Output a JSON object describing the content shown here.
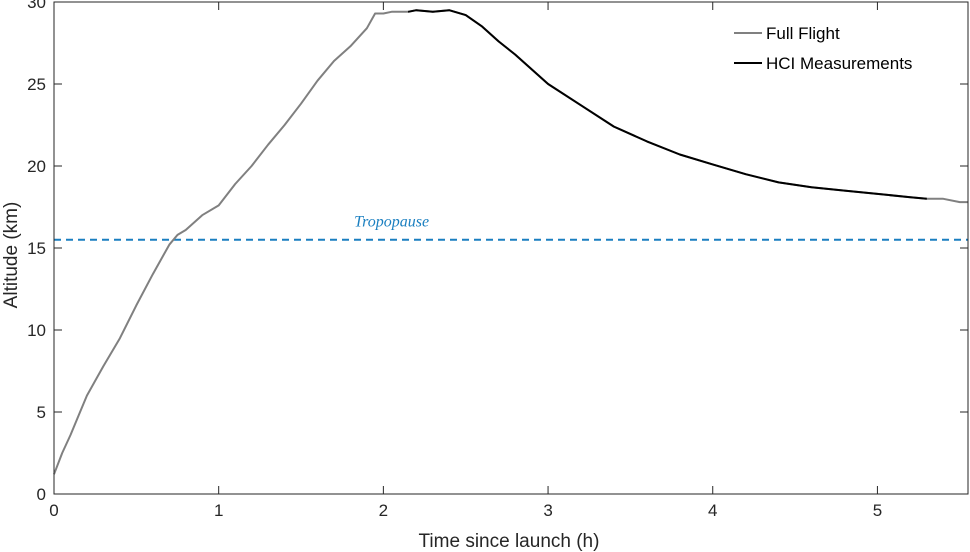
{
  "chart_data": {
    "type": "line",
    "xlabel": "Time since launch (h)",
    "ylabel": "Altitude (km)",
    "xlim": [
      0,
      5.55
    ],
    "ylim": [
      0,
      30
    ],
    "xticks": [
      "0",
      "1",
      "2",
      "3",
      "4",
      "5"
    ],
    "yticks": [
      "0",
      "5",
      "10",
      "15",
      "20",
      "25",
      "30"
    ],
    "grid": false,
    "legend_position": "top-right",
    "series": [
      {
        "name": "Full Flight",
        "color": "#808080",
        "x": [
          0,
          0.05,
          0.1,
          0.15,
          0.2,
          0.3,
          0.4,
          0.5,
          0.6,
          0.7,
          0.75,
          0.8,
          0.9,
          1.0,
          1.1,
          1.2,
          1.3,
          1.4,
          1.5,
          1.6,
          1.7,
          1.8,
          1.9,
          1.95,
          2.0,
          2.05,
          2.1,
          2.15,
          2.2,
          2.3,
          2.4,
          2.5,
          2.6,
          2.7,
          2.8,
          2.9,
          3.0,
          3.2,
          3.4,
          3.6,
          3.8,
          4.0,
          4.2,
          4.4,
          4.6,
          4.8,
          5.0,
          5.2,
          5.3,
          5.4,
          5.5,
          5.55
        ],
        "y": [
          1.2,
          2.5,
          3.6,
          4.8,
          6.0,
          7.8,
          9.5,
          11.5,
          13.4,
          15.2,
          15.8,
          16.1,
          17.0,
          17.6,
          18.9,
          20.0,
          21.3,
          22.5,
          23.8,
          25.2,
          26.4,
          27.3,
          28.4,
          29.3,
          29.3,
          29.4,
          29.4,
          29.4,
          29.5,
          29.4,
          29.5,
          29.2,
          28.5,
          27.6,
          26.8,
          25.9,
          25.0,
          23.7,
          22.4,
          21.5,
          20.7,
          20.1,
          19.5,
          19.0,
          18.7,
          18.5,
          18.3,
          18.1,
          18.0,
          18.0,
          17.8,
          17.8
        ]
      },
      {
        "name": "HCI Measurements",
        "color": "#000000",
        "x": [
          2.15,
          2.2,
          2.3,
          2.4,
          2.5,
          2.6,
          2.7,
          2.8,
          2.9,
          3.0,
          3.2,
          3.4,
          3.6,
          3.8,
          4.0,
          4.2,
          4.4,
          4.6,
          4.8,
          5.0,
          5.2,
          5.3
        ],
        "y": [
          29.4,
          29.5,
          29.4,
          29.5,
          29.2,
          28.5,
          27.6,
          26.8,
          25.9,
          25.0,
          23.7,
          22.4,
          21.5,
          20.7,
          20.1,
          19.5,
          19.0,
          18.7,
          18.5,
          18.3,
          18.1,
          18.0
        ]
      }
    ],
    "reference_lines": [
      {
        "label": "Tropopause",
        "y": 15.5,
        "color": "#1a7fc0",
        "style": "dashed"
      }
    ],
    "annotations": [
      {
        "text": "Tropopause",
        "x": 2.05,
        "y": 16.3,
        "color": "#1a7fc0"
      }
    ]
  }
}
